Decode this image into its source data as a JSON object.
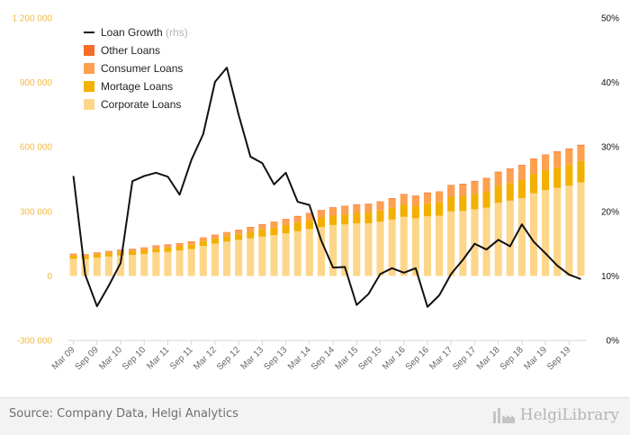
{
  "chart_data": {
    "type": "bar",
    "stacked": true,
    "categories": [
      "Mar 09",
      "Jun 09",
      "Sep 09",
      "Dec 09",
      "Mar 10",
      "Jun 10",
      "Sep 10",
      "Dec 10",
      "Mar 11",
      "Jun 11",
      "Sep 11",
      "Dec 11",
      "Mar 12",
      "Jun 12",
      "Sep 12",
      "Dec 12",
      "Mar 13",
      "Jun 13",
      "Sep 13",
      "Dec 13",
      "Mar 14",
      "Jun 14",
      "Sep 14",
      "Dec 14",
      "Mar 15",
      "Jun 15",
      "Sep 15",
      "Dec 15",
      "Mar 16",
      "Jun 16",
      "Sep 16",
      "Dec 16",
      "Mar 17",
      "Jun 17",
      "Sep 17",
      "Dec 17",
      "Mar 18",
      "Jun 18",
      "Sep 18",
      "Dec 18",
      "Mar 19",
      "Jun 19",
      "Sep 19",
      "Dec 19"
    ],
    "tick_labels": [
      "Mar 09",
      "Sep 09",
      "Mar 10",
      "Sep 10",
      "Mar 11",
      "Sep 11",
      "Mar 12",
      "Sep 12",
      "Mar 13",
      "Sep 13",
      "Mar 14",
      "Sep 14",
      "Mar 15",
      "Sep 15",
      "Mar 16",
      "Sep 16",
      "Mar 17",
      "Sep 17",
      "Mar 18",
      "Sep 18",
      "Mar 19",
      "Sep 19"
    ],
    "series": [
      {
        "name": "Corporate Loans",
        "color": "#fdd68a",
        "values": [
          80000,
          78000,
          85000,
          90000,
          95000,
          98000,
          103000,
          110000,
          112000,
          118000,
          125000,
          140000,
          150000,
          160000,
          168000,
          175000,
          183000,
          190000,
          198000,
          208000,
          218000,
          228000,
          237000,
          240000,
          245000,
          245000,
          252000,
          262000,
          275000,
          268000,
          278000,
          280000,
          300000,
          302000,
          310000,
          318000,
          340000,
          350000,
          362000,
          385000,
          400000,
          410000,
          420000,
          435000
        ]
      },
      {
        "name": "Mortage Loans",
        "color": "#f3b000",
        "values": [
          15000,
          15000,
          15000,
          16000,
          17000,
          17000,
          18000,
          18000,
          20000,
          20000,
          20000,
          22000,
          24000,
          25000,
          27000,
          30000,
          33000,
          35000,
          38000,
          40000,
          42000,
          44000,
          45000,
          47000,
          48000,
          50000,
          52000,
          55000,
          58000,
          58000,
          60000,
          62000,
          68000,
          70000,
          72000,
          75000,
          80000,
          82000,
          84000,
          88000,
          92000,
          95000,
          98000,
          100000
        ]
      },
      {
        "name": "Consumer Loans",
        "color": "#fda050",
        "values": [
          8000,
          8000,
          9000,
          10000,
          10000,
          11000,
          11000,
          12000,
          13000,
          13000,
          14000,
          15000,
          16000,
          17000,
          18000,
          20000,
          22000,
          24000,
          26000,
          28000,
          30000,
          32000,
          34000,
          36000,
          37000,
          38000,
          40000,
          42000,
          45000,
          45000,
          47000,
          48000,
          52000,
          54000,
          57000,
          60000,
          62000,
          65000,
          68000,
          70000,
          70000,
          72000,
          72000,
          72000
        ]
      },
      {
        "name": "Other Loans",
        "color": "#f56b25",
        "values": [
          1000,
          1000,
          1000,
          1000,
          1000,
          1000,
          1000,
          2000,
          2000,
          2000,
          2000,
          2000,
          2000,
          2000,
          2000,
          3000,
          3000,
          3000,
          3000,
          3000,
          3000,
          3000,
          3000,
          3000,
          3000,
          3000,
          3000,
          3000,
          3000,
          3000,
          3000,
          3000,
          3000,
          3000,
          3000,
          3000,
          3000,
          3000,
          3000,
          3000,
          3000,
          3000,
          3000,
          3000
        ]
      },
      {
        "name": "Loan Growth",
        "label_suffix": "(rhs)",
        "type": "line",
        "axis": "right",
        "color": "#111111",
        "values": [
          25.5,
          10.2,
          5.3,
          8.5,
          12.0,
          24.7,
          25.5,
          26.0,
          25.4,
          22.6,
          28.0,
          32.0,
          40.1,
          42.3,
          35.0,
          28.5,
          27.5,
          24.2,
          26.0,
          21.5,
          21.0,
          15.5,
          11.3,
          11.4,
          5.5,
          7.2,
          10.3,
          11.2,
          10.5,
          11.2,
          5.2,
          7.0,
          10.3,
          12.5,
          15.0,
          14.1,
          15.6,
          14.6,
          18.0,
          15.3,
          13.5,
          11.6,
          10.2,
          9.5
        ]
      }
    ],
    "y_left": {
      "ticks": [
        -300000,
        0,
        300000,
        600000,
        900000,
        1200000
      ],
      "tick_labels": [
        "-300 000",
        "0",
        "300 000",
        "600 000",
        "900 000",
        "1 200 000"
      ],
      "range": [
        -300000,
        1200000
      ],
      "color": "#f4b942"
    },
    "y_right": {
      "ticks": [
        0,
        10,
        20,
        30,
        40,
        50
      ],
      "tick_labels": [
        "0%",
        "10%",
        "20%",
        "30%",
        "40%",
        "50%"
      ],
      "range": [
        0,
        50
      ]
    },
    "legend_placement": "top-left",
    "grid": false
  },
  "footer": {
    "source": "Source: Company Data, Helgi Analytics",
    "logo_text": "HelgiLibrary",
    "logo_icon": "factory-icon"
  }
}
